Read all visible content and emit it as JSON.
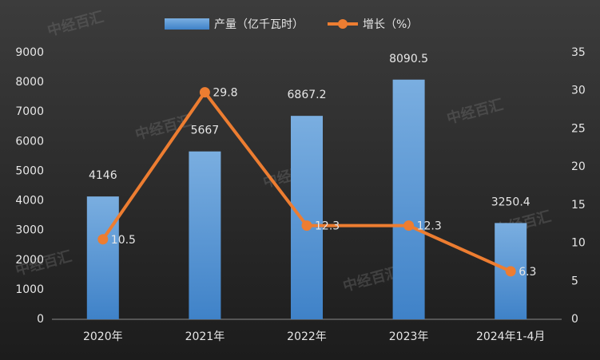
{
  "chart_data": {
    "type": "bar",
    "categories": [
      "2020年",
      "2021年",
      "2022年",
      "2023年",
      "2024年1-4月"
    ],
    "series": [
      {
        "name": "产量（亿千瓦时）",
        "color": "#5b9bd5",
        "values": [
          4146,
          5667,
          6867.2,
          8090.5,
          3250.4
        ]
      },
      {
        "name": "增长（%）",
        "type": "line",
        "axis": "y2",
        "color": "#ed7d31",
        "values": [
          10.5,
          29.8,
          12.3,
          12.3,
          6.3
        ]
      }
    ],
    "ylim": [
      0,
      9000
    ],
    "yticks": [
      0,
      1000,
      2000,
      3000,
      4000,
      5000,
      6000,
      7000,
      8000,
      9000
    ],
    "y2lim": [
      0,
      35
    ],
    "y2ticks": [
      0,
      5,
      10,
      15,
      20,
      25,
      30,
      35
    ],
    "grid": false,
    "legend": "top",
    "watermark": "中经百汇"
  }
}
